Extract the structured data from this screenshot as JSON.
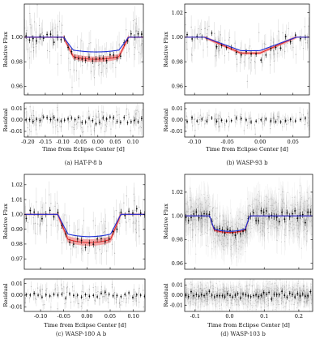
{
  "colors": {
    "model": "#1f2fd6",
    "band": "#e11d1d",
    "band_fill": "#f28b8b",
    "data": "#8a8a8a",
    "binned": "#000000"
  },
  "chart_data": [
    {
      "type": "scatter",
      "caption": "(a) HAT-P-8 b",
      "xlabel": "Time from Eclipse Center [d]",
      "ylabel": "Relative Flux",
      "resid_label": "Residual",
      "xlim": [
        -0.21,
        0.13
      ],
      "ylim": [
        0.953,
        1.027
      ],
      "rlim": [
        -0.015,
        0.015
      ],
      "xticks": [
        -0.2,
        -0.15,
        -0.1,
        -0.05,
        0.0,
        0.05,
        0.1
      ],
      "xtick_labels": [
        "-0.20",
        "-0.15",
        "-0.10",
        "-0.05",
        "0.00",
        "0.05",
        "0.10"
      ],
      "yticks": [
        0.96,
        0.98,
        1.0
      ],
      "ytick_labels": [
        "0.96",
        "0.98",
        "1.00"
      ],
      "rticks": [
        -0.01,
        0.0,
        0.01
      ],
      "rtick_labels": [
        "-0.01",
        "0.00",
        "0.01"
      ],
      "transit": {
        "center": -0.005,
        "half_width": 0.093,
        "ingress": 0.028,
        "depth_model": 0.012,
        "depth_band": 0.018,
        "band_halfwidth": 0.0022
      },
      "noise": 0.008,
      "raw_points": 130,
      "binned_step": 0.01,
      "rnoise": 0.005
    },
    {
      "type": "scatter",
      "caption": "(b) WASP-93 b",
      "xlabel": "Time from Eclipse Center [d]",
      "ylabel": "Relative Flux",
      "resid_label": "Residual",
      "xlim": [
        -0.115,
        0.075
      ],
      "ylim": [
        0.953,
        1.027
      ],
      "rlim": [
        -0.015,
        0.015
      ],
      "xticks": [
        -0.1,
        -0.05,
        0.0,
        0.05
      ],
      "xtick_labels": [
        "-0.10",
        "-0.05",
        "0.00",
        "0.05"
      ],
      "yticks": [
        0.96,
        0.98,
        1.0,
        1.02
      ],
      "ytick_labels": [
        "0.96",
        "0.98",
        "1.00",
        "1.02"
      ],
      "rticks": [
        -0.01,
        0.0,
        0.01
      ],
      "rtick_labels": [
        "-0.01",
        "0.00",
        "0.01"
      ],
      "transit": {
        "center": -0.015,
        "half_width": 0.07,
        "ingress": 0.055,
        "depth_model": 0.011,
        "depth_band": 0.013,
        "band_halfwidth": 0.0012
      },
      "noise": 0.007,
      "raw_points": 110,
      "binned_step": 0.0075,
      "rnoise": 0.0035
    },
    {
      "type": "scatter",
      "caption": "(c) WASP-180 A b",
      "xlabel": "Time from Eclipse Center [d]",
      "ylabel": "Relative Flux",
      "resid_label": "Residual",
      "xlim": [
        -0.135,
        0.125
      ],
      "ylim": [
        0.963,
        1.027
      ],
      "rlim": [
        -0.014,
        0.014
      ],
      "xticks": [
        -0.1,
        -0.05,
        0.0,
        0.05,
        0.1
      ],
      "xtick_labels": [
        "-0.10",
        "-0.05",
        "0.00",
        "0.05",
        "0.10"
      ],
      "yticks": [
        0.97,
        0.98,
        0.99,
        1.0,
        1.01,
        1.02
      ],
      "ytick_labels": [
        "0.97",
        "0.98",
        "0.99",
        "1.00",
        "1.01",
        "1.02"
      ],
      "rticks": [
        -0.01,
        0.0,
        0.01
      ],
      "rtick_labels": [
        "-0.01",
        "0.00",
        "0.01"
      ],
      "transit": {
        "center": 0.005,
        "half_width": 0.068,
        "ingress": 0.022,
        "depth_model": 0.015,
        "depth_band": 0.019,
        "band_halfwidth": 0.0022
      },
      "noise": 0.007,
      "raw_points": 120,
      "binned_step": 0.0085,
      "rnoise": 0.005
    },
    {
      "type": "scatter",
      "caption": "(d) WASP-103 b",
      "xlabel": "Time from Eclipse Center [d]",
      "ylabel": "Relative Flux",
      "resid_label": "Residual",
      "xlim": [
        -0.13,
        0.24
      ],
      "ylim": [
        0.955,
        1.035
      ],
      "rlim": [
        -0.016,
        0.016
      ],
      "xticks": [
        -0.1,
        0.0,
        0.1,
        0.2
      ],
      "xtick_labels": [
        "-0.1",
        "0.0",
        "0.1",
        "0.2"
      ],
      "yticks": [
        0.96,
        0.98,
        1.0,
        1.02
      ],
      "ytick_labels": [
        "0.96",
        "0.98",
        "1.00",
        "1.02"
      ],
      "rticks": [
        -0.01,
        0.0,
        0.01
      ],
      "rtick_labels": [
        "-0.01",
        "0.00",
        "0.01"
      ],
      "transit": {
        "center": 0.0,
        "half_width": 0.058,
        "ingress": 0.013,
        "depth_model": 0.013,
        "depth_band": 0.014,
        "band_halfwidth": 0.0012
      },
      "noise": 0.009,
      "raw_points": 900,
      "binned_step": 0.0075,
      "rnoise": 0.006
    }
  ]
}
